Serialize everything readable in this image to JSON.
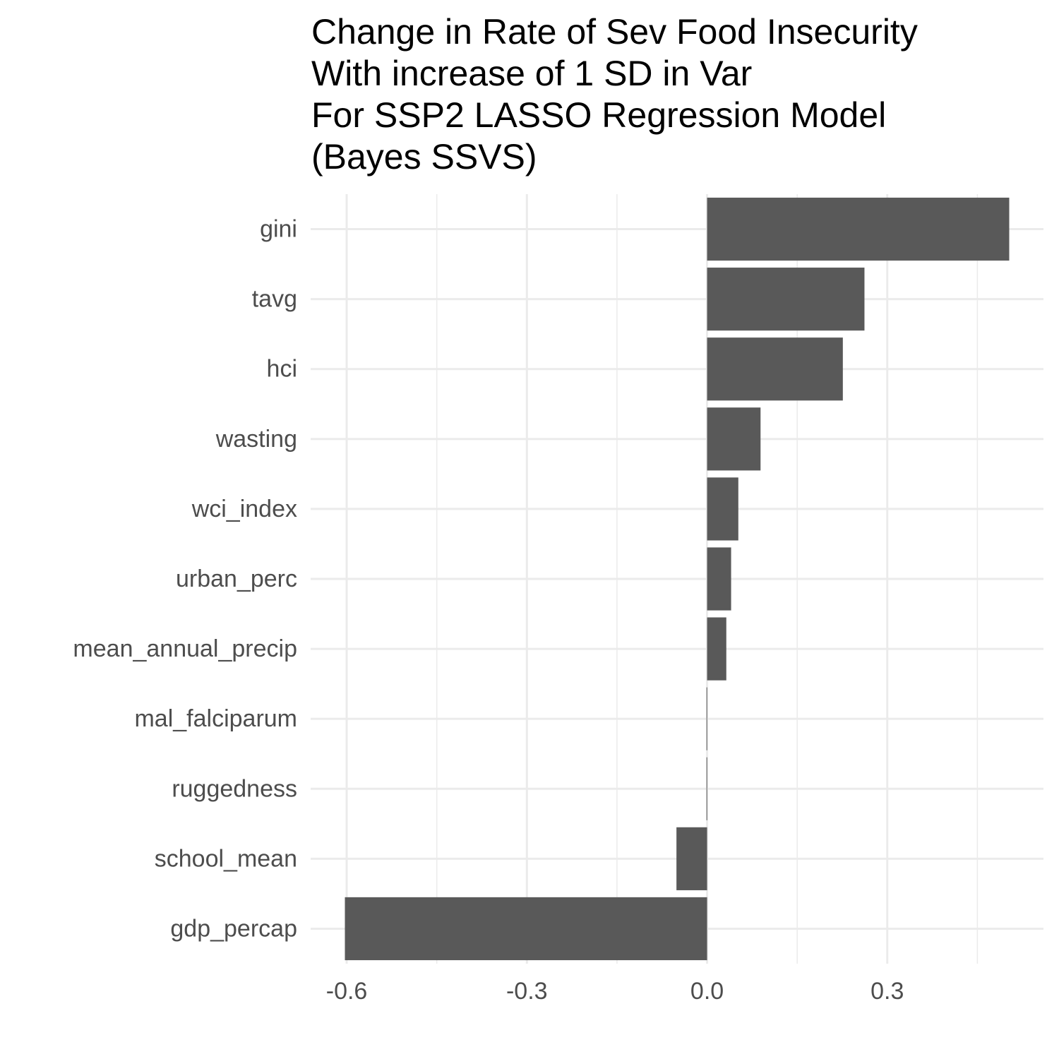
{
  "chart_data": {
    "type": "bar",
    "orientation": "horizontal",
    "title_lines": [
      "Change in Rate of Sev Food Insecurity",
      "With increase of 1 SD in Var",
      "For SSP2 LASSO Regression Model",
      "(Bayes SSVS)"
    ],
    "xlabel": "",
    "ylabel": "",
    "categories": [
      "gini",
      "tavg",
      "hci",
      "wasting",
      "wci_index",
      "urban_perc",
      "mean_annual_precip",
      "mal_falciparum",
      "ruggedness",
      "school_mean",
      "gdp_percap"
    ],
    "values": [
      0.503,
      0.262,
      0.226,
      0.089,
      0.052,
      0.04,
      0.032,
      -0.001,
      -0.001,
      -0.051,
      -0.603
    ],
    "xlim": [
      -0.66,
      0.56
    ],
    "xticks": [
      -0.6,
      -0.3,
      0.0,
      0.3
    ],
    "xtick_labels": [
      "-0.6",
      "-0.3",
      "0.0",
      "0.3"
    ],
    "grid": true,
    "bar_color": "#595959",
    "grid_color": "#ebebeb"
  }
}
